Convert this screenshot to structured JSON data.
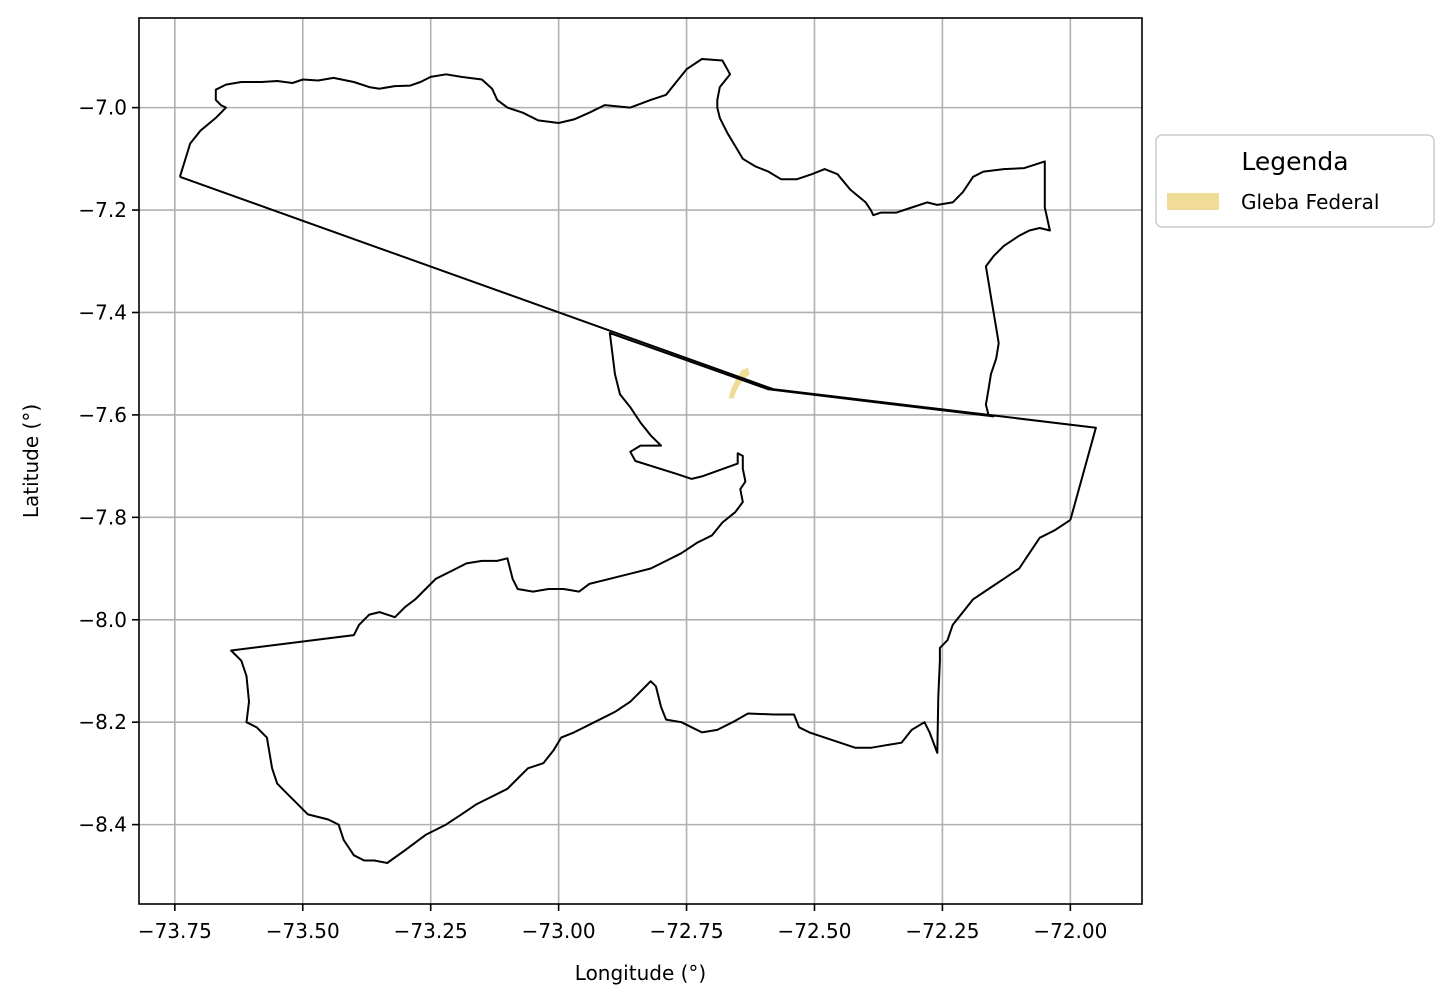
{
  "chart_data": {
    "type": "map",
    "xlabel": "Longitude (°)",
    "ylabel": "Latitude (°)",
    "xlim": [
      -73.82,
      -71.86
    ],
    "ylim": [
      -8.555,
      -6.825
    ],
    "x_ticks": [
      {
        "value": -73.75,
        "label": "−73.75"
      },
      {
        "value": -73.5,
        "label": "−73.50"
      },
      {
        "value": -73.25,
        "label": "−73.25"
      },
      {
        "value": -73.0,
        "label": "−73.00"
      },
      {
        "value": -72.75,
        "label": "−72.75"
      },
      {
        "value": -72.5,
        "label": "−72.50"
      },
      {
        "value": -72.25,
        "label": "−72.25"
      },
      {
        "value": -72.0,
        "label": "−72.00"
      }
    ],
    "y_ticks": [
      {
        "value": -7.0,
        "label": "−7.0"
      },
      {
        "value": -7.2,
        "label": "−7.2"
      },
      {
        "value": -7.4,
        "label": "−7.4"
      },
      {
        "value": -7.6,
        "label": "−7.6"
      },
      {
        "value": -7.8,
        "label": "−7.8"
      },
      {
        "value": -8.0,
        "label": "−8.0"
      },
      {
        "value": -8.2,
        "label": "−8.2"
      },
      {
        "value": -8.4,
        "label": "−8.4"
      }
    ],
    "grid": true,
    "legend": {
      "title": "Legenda",
      "placement": "outside-right-top",
      "entries": [
        {
          "label": "Gleba Federal",
          "color": "#f0dc96"
        }
      ]
    },
    "colors": {
      "boundary": "#000000",
      "gleba": "#f0dc96",
      "grid": "#b0b0b0"
    },
    "boundaries": [
      {
        "name": "outline-north",
        "points": [
          [
            -73.74,
            -7.135
          ],
          [
            -73.72,
            -7.07
          ],
          [
            -73.7,
            -7.045
          ],
          [
            -73.67,
            -7.02
          ],
          [
            -73.65,
            -7.0
          ],
          [
            -73.66,
            -6.995
          ],
          [
            -73.67,
            -6.985
          ],
          [
            -73.67,
            -6.965
          ],
          [
            -73.65,
            -6.955
          ],
          [
            -73.62,
            -6.95
          ],
          [
            -73.58,
            -6.95
          ],
          [
            -73.55,
            -6.948
          ],
          [
            -73.52,
            -6.952
          ],
          [
            -73.5,
            -6.945
          ],
          [
            -73.47,
            -6.947
          ],
          [
            -73.44,
            -6.942
          ],
          [
            -73.4,
            -6.95
          ],
          [
            -73.37,
            -6.96
          ],
          [
            -73.35,
            -6.963
          ],
          [
            -73.32,
            -6.958
          ],
          [
            -73.29,
            -6.957
          ],
          [
            -73.27,
            -6.95
          ],
          [
            -73.25,
            -6.94
          ],
          [
            -73.22,
            -6.935
          ],
          [
            -73.19,
            -6.94
          ],
          [
            -73.15,
            -6.945
          ],
          [
            -73.13,
            -6.963
          ],
          [
            -73.12,
            -6.985
          ],
          [
            -73.1,
            -7.0
          ],
          [
            -73.07,
            -7.01
          ],
          [
            -73.04,
            -7.025
          ],
          [
            -73.0,
            -7.03
          ],
          [
            -72.97,
            -7.023
          ],
          [
            -72.94,
            -7.01
          ],
          [
            -72.91,
            -6.995
          ],
          [
            -72.86,
            -7.0
          ],
          [
            -72.82,
            -6.985
          ],
          [
            -72.79,
            -6.975
          ],
          [
            -72.77,
            -6.95
          ],
          [
            -72.75,
            -6.925
          ],
          [
            -72.72,
            -6.905
          ],
          [
            -72.68,
            -6.908
          ],
          [
            -72.665,
            -6.935
          ],
          [
            -72.685,
            -6.96
          ],
          [
            -72.69,
            -6.985
          ],
          [
            -72.69,
            -7.0
          ],
          [
            -72.685,
            -7.02
          ],
          [
            -72.67,
            -7.05
          ],
          [
            -72.655,
            -7.075
          ],
          [
            -72.64,
            -7.1
          ],
          [
            -72.615,
            -7.115
          ],
          [
            -72.59,
            -7.125
          ],
          [
            -72.565,
            -7.14
          ],
          [
            -72.535,
            -7.14
          ],
          [
            -72.505,
            -7.13
          ],
          [
            -72.48,
            -7.12
          ],
          [
            -72.455,
            -7.13
          ],
          [
            -72.43,
            -7.16
          ],
          [
            -72.4,
            -7.185
          ],
          [
            -72.39,
            -7.2
          ],
          [
            -72.385,
            -7.21
          ],
          [
            -72.37,
            -7.205
          ],
          [
            -72.34,
            -7.205
          ],
          [
            -72.31,
            -7.195
          ],
          [
            -72.28,
            -7.185
          ],
          [
            -72.26,
            -7.19
          ],
          [
            -72.23,
            -7.185
          ],
          [
            -72.21,
            -7.165
          ],
          [
            -72.19,
            -7.135
          ],
          [
            -72.17,
            -7.125
          ],
          [
            -72.13,
            -7.12
          ],
          [
            -72.09,
            -7.118
          ],
          [
            -72.05,
            -7.105
          ],
          [
            -72.05,
            -7.195
          ],
          [
            -72.04,
            -7.24
          ],
          [
            -72.06,
            -7.235
          ],
          [
            -72.08,
            -7.24
          ],
          [
            -72.1,
            -7.25
          ],
          [
            -72.13,
            -7.27
          ],
          [
            -72.15,
            -7.29
          ],
          [
            -72.165,
            -7.31
          ],
          [
            -72.16,
            -7.34
          ],
          [
            -72.155,
            -7.37
          ],
          [
            -72.15,
            -7.4
          ],
          [
            -72.145,
            -7.43
          ],
          [
            -72.14,
            -7.46
          ],
          [
            -72.145,
            -7.49
          ],
          [
            -72.155,
            -7.52
          ],
          [
            -72.16,
            -7.55
          ],
          [
            -72.165,
            -7.58
          ],
          [
            -72.16,
            -7.6
          ]
        ]
      },
      {
        "name": "diagonal-boundary",
        "points": [
          [
            -73.74,
            -7.135
          ],
          [
            -72.58,
            -7.55
          ],
          [
            -71.95,
            -7.625
          ],
          [
            -72.0,
            -7.805
          ]
        ]
      },
      {
        "name": "main-outline",
        "points": [
          [
            -72.0,
            -7.805
          ],
          [
            -72.03,
            -7.825
          ],
          [
            -72.06,
            -7.84
          ],
          [
            -72.08,
            -7.87
          ],
          [
            -72.1,
            -7.9
          ],
          [
            -72.13,
            -7.92
          ],
          [
            -72.16,
            -7.94
          ],
          [
            -72.19,
            -7.96
          ],
          [
            -72.21,
            -7.985
          ],
          [
            -72.23,
            -8.01
          ],
          [
            -72.24,
            -8.04
          ],
          [
            -72.255,
            -8.055
          ],
          [
            -72.255,
            -8.08
          ],
          [
            -72.258,
            -8.15
          ],
          [
            -72.26,
            -8.26
          ],
          [
            -72.275,
            -8.22
          ],
          [
            -72.285,
            -8.2
          ],
          [
            -72.31,
            -8.215
          ],
          [
            -72.33,
            -8.24
          ],
          [
            -72.36,
            -8.245
          ],
          [
            -72.39,
            -8.25
          ],
          [
            -72.42,
            -8.25
          ],
          [
            -72.45,
            -8.24
          ],
          [
            -72.48,
            -8.23
          ],
          [
            -72.51,
            -8.22
          ],
          [
            -72.53,
            -8.21
          ],
          [
            -72.54,
            -8.185
          ],
          [
            -72.58,
            -8.185
          ],
          [
            -72.63,
            -8.183
          ],
          [
            -72.66,
            -8.2
          ],
          [
            -72.69,
            -8.215
          ],
          [
            -72.72,
            -8.22
          ],
          [
            -72.74,
            -8.21
          ],
          [
            -72.76,
            -8.2
          ],
          [
            -72.79,
            -8.195
          ],
          [
            -72.8,
            -8.17
          ],
          [
            -72.81,
            -8.13
          ],
          [
            -72.82,
            -8.12
          ],
          [
            -72.84,
            -8.14
          ],
          [
            -72.86,
            -8.16
          ],
          [
            -72.89,
            -8.18
          ],
          [
            -72.93,
            -8.2
          ],
          [
            -72.97,
            -8.22
          ],
          [
            -72.995,
            -8.23
          ],
          [
            -73.01,
            -8.255
          ],
          [
            -73.03,
            -8.28
          ],
          [
            -73.06,
            -8.29
          ],
          [
            -73.08,
            -8.31
          ],
          [
            -73.1,
            -8.33
          ],
          [
            -73.13,
            -8.345
          ],
          [
            -73.16,
            -8.36
          ],
          [
            -73.19,
            -8.38
          ],
          [
            -73.22,
            -8.4
          ],
          [
            -73.26,
            -8.42
          ],
          [
            -73.3,
            -8.45
          ],
          [
            -73.335,
            -8.475
          ],
          [
            -73.36,
            -8.47
          ],
          [
            -73.38,
            -8.47
          ],
          [
            -73.4,
            -8.46
          ],
          [
            -73.42,
            -8.43
          ],
          [
            -73.43,
            -8.4
          ],
          [
            -73.45,
            -8.39
          ],
          [
            -73.49,
            -8.38
          ],
          [
            -73.51,
            -8.36
          ],
          [
            -73.53,
            -8.34
          ],
          [
            -73.55,
            -8.32
          ],
          [
            -73.56,
            -8.29
          ],
          [
            -73.565,
            -8.26
          ],
          [
            -73.57,
            -8.23
          ],
          [
            -73.59,
            -8.21
          ],
          [
            -73.61,
            -8.2
          ],
          [
            -73.605,
            -8.16
          ],
          [
            -73.61,
            -8.11
          ],
          [
            -73.62,
            -8.08
          ],
          [
            -73.64,
            -8.06
          ],
          [
            -73.4,
            -8.03
          ],
          [
            -73.39,
            -8.01
          ],
          [
            -73.37,
            -7.99
          ],
          [
            -73.35,
            -7.985
          ],
          [
            -73.32,
            -7.995
          ],
          [
            -73.3,
            -7.975
          ],
          [
            -73.28,
            -7.96
          ],
          [
            -73.26,
            -7.94
          ],
          [
            -73.24,
            -7.92
          ],
          [
            -73.21,
            -7.905
          ],
          [
            -73.18,
            -7.89
          ],
          [
            -73.15,
            -7.885
          ],
          [
            -73.12,
            -7.885
          ],
          [
            -73.1,
            -7.88
          ],
          [
            -73.09,
            -7.92
          ],
          [
            -73.08,
            -7.94
          ],
          [
            -73.05,
            -7.945
          ],
          [
            -73.02,
            -7.94
          ],
          [
            -72.99,
            -7.94
          ],
          [
            -72.96,
            -7.945
          ],
          [
            -72.94,
            -7.93
          ],
          [
            -72.9,
            -7.92
          ],
          [
            -72.86,
            -7.91
          ],
          [
            -72.82,
            -7.9
          ],
          [
            -72.79,
            -7.885
          ],
          [
            -72.76,
            -7.87
          ],
          [
            -72.73,
            -7.85
          ],
          [
            -72.7,
            -7.835
          ],
          [
            -72.68,
            -7.81
          ],
          [
            -72.655,
            -7.79
          ],
          [
            -72.64,
            -7.77
          ],
          [
            -72.645,
            -7.745
          ],
          [
            -72.635,
            -7.73
          ],
          [
            -72.64,
            -7.705
          ],
          [
            -72.64,
            -7.68
          ],
          [
            -72.65,
            -7.675
          ],
          [
            -72.65,
            -7.695
          ],
          [
            -72.72,
            -7.72
          ],
          [
            -72.74,
            -7.725
          ],
          [
            -72.77,
            -7.715
          ],
          [
            -72.85,
            -7.69
          ],
          [
            -72.86,
            -7.672
          ],
          [
            -72.84,
            -7.66
          ],
          [
            -72.82,
            -7.66
          ],
          [
            -72.8,
            -7.66
          ],
          [
            -72.82,
            -7.64
          ],
          [
            -72.84,
            -7.615
          ],
          [
            -72.86,
            -7.585
          ],
          [
            -72.88,
            -7.56
          ],
          [
            -72.89,
            -7.52
          ],
          [
            -72.895,
            -7.48
          ],
          [
            -72.9,
            -7.44
          ],
          [
            -72.59,
            -7.55
          ],
          [
            -72.15,
            -7.603
          ],
          [
            -72.16,
            -7.6
          ]
        ]
      }
    ],
    "gleba": [
      [
        -72.664,
        -7.565
      ],
      [
        -72.66,
        -7.55
      ],
      [
        -72.65,
        -7.53
      ],
      [
        -72.64,
        -7.515
      ],
      [
        -72.632,
        -7.512
      ],
      [
        -72.63,
        -7.52
      ],
      [
        -72.64,
        -7.528
      ],
      [
        -72.65,
        -7.542
      ],
      [
        -72.658,
        -7.558
      ],
      [
        -72.66,
        -7.565
      ]
    ]
  }
}
